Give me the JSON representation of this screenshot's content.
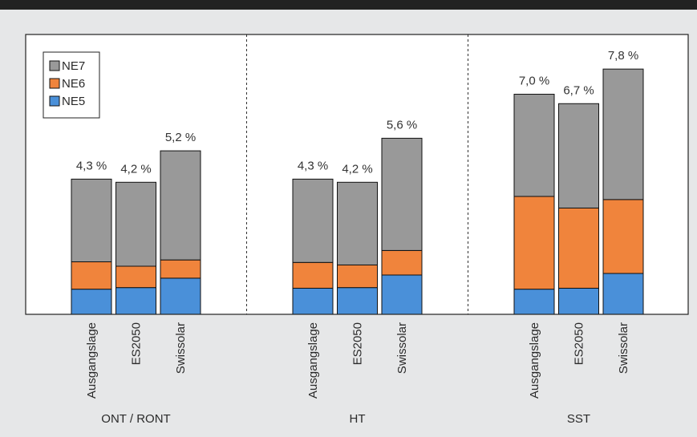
{
  "colors": {
    "top_bar": "#222222",
    "panel_background": "#e6e7e8",
    "plot_background": "#ffffff",
    "NE5": "#4a90d9",
    "NE6": "#f0843c",
    "NE7": "#999999"
  },
  "chart_data": {
    "type": "bar",
    "stacked": true,
    "grid": false,
    "legend_position": "top-left",
    "groups": [
      {
        "label": "ONT / RONT",
        "categories": [
          "Ausgangslage",
          "ES2050",
          "Swissolar"
        ]
      },
      {
        "label": "HT",
        "categories": [
          "Ausgangslage",
          "ES2050",
          "Swissolar"
        ]
      },
      {
        "label": "SST",
        "categories": [
          "Ausgangslage",
          "ES2050",
          "Swissolar"
        ]
      }
    ],
    "series": [
      {
        "name": "NE5",
        "values": [
          0.8,
          0.85,
          1.15,
          0.83,
          0.85,
          1.25,
          0.8,
          0.83,
          1.3
        ]
      },
      {
        "name": "NE6",
        "values": [
          0.87,
          0.68,
          0.58,
          0.82,
          0.72,
          0.78,
          2.95,
          2.55,
          2.35
        ]
      },
      {
        "name": "NE7",
        "values": [
          2.63,
          2.67,
          3.47,
          2.65,
          2.63,
          3.57,
          3.25,
          3.32,
          4.15
        ]
      }
    ],
    "totals": [
      "4,3 %",
      "4,2 %",
      "5,2 %",
      "4,3 %",
      "4,2 %",
      "5,6 %",
      "7,0 %",
      "6,7 %",
      "7,8 %"
    ],
    "legend": [
      "NE7",
      "NE6",
      "NE5"
    ],
    "ylim": [
      0,
      8.9
    ]
  }
}
